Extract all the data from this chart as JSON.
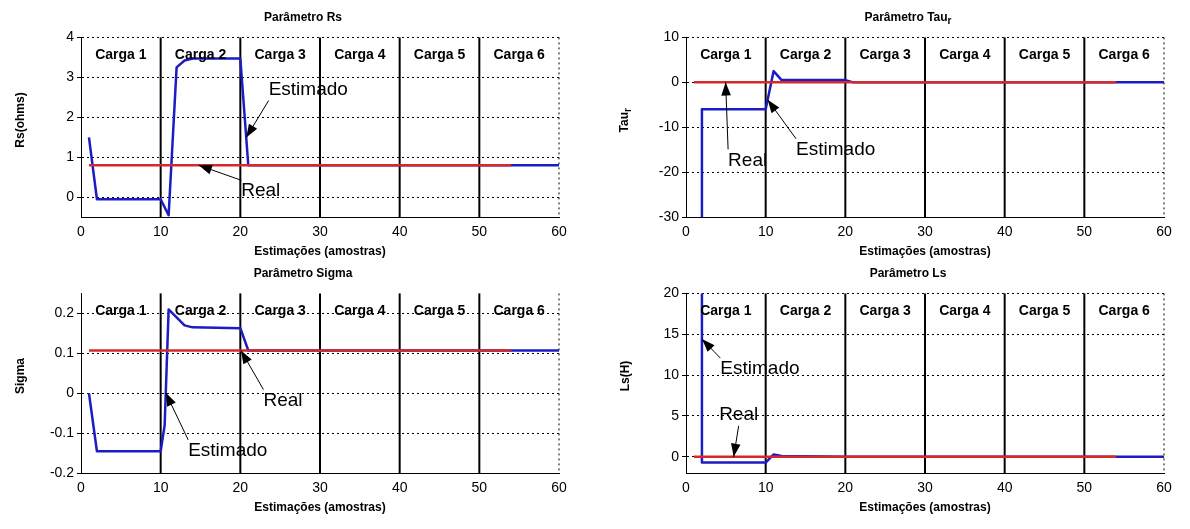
{
  "chart_data": [
    {
      "type": "line",
      "title": "Parâmetro Rs",
      "xlabel": "Estimações (amostras)",
      "ylabel": "Rs(ohms)",
      "xlim": [
        0,
        60
      ],
      "xticks": [
        0,
        10,
        20,
        30,
        40,
        50,
        60
      ],
      "ylim": [
        -0.5,
        4
      ],
      "yticks": [
        0,
        1,
        2,
        3,
        4
      ],
      "grid": "y",
      "series": [
        {
          "name": "Estimado",
          "color": "#1c1cc4",
          "x": [
            1,
            2,
            10,
            11,
            12,
            13,
            14,
            20,
            21,
            60
          ],
          "values": [
            1.5,
            -0.05,
            -0.05,
            -0.45,
            3.25,
            3.42,
            3.47,
            3.47,
            0.8,
            0.8
          ]
        },
        {
          "name": "Real",
          "color": "#d42a2a",
          "x": [
            1,
            54
          ],
          "values": [
            0.8,
            0.8
          ]
        }
      ],
      "ref_lines": [
        {
          "axis": "x",
          "value": 10,
          "color": "#000000"
        },
        {
          "axis": "x",
          "value": 20,
          "color": "#000000"
        },
        {
          "axis": "x",
          "value": 30,
          "color": "#000000"
        },
        {
          "axis": "x",
          "value": 40,
          "color": "#000000"
        },
        {
          "axis": "x",
          "value": 50,
          "color": "#000000"
        }
      ],
      "annotations": [
        "Carga 1",
        "Carga 2",
        "Carga 3",
        "Carga 4",
        "Carga 5",
        "Carga 6"
      ]
    },
    {
      "type": "line",
      "title": "Parâmetro Tau$_{r}$",
      "xlabel": "Estimações (amostras)",
      "ylabel": "Tau$_{r}$",
      "xlim": [
        0,
        60
      ],
      "xticks": [
        0,
        10,
        20,
        30,
        40,
        50,
        60
      ],
      "ylim": [
        -30,
        10
      ],
      "yticks": [
        -30,
        -20,
        -10,
        0,
        10
      ],
      "grid": "y",
      "series": [
        {
          "name": "Estimado",
          "color": "#1c1cc4",
          "x": [
            2,
            2,
            10,
            11,
            12,
            20,
            21,
            60
          ],
          "values": [
            -30,
            -6,
            -6,
            2.5,
            0.5,
            0.5,
            0,
            0
          ]
        },
        {
          "name": "Real",
          "color": "#d42a2a",
          "x": [
            1,
            54
          ],
          "values": [
            0,
            0
          ]
        }
      ],
      "ref_lines": [
        {
          "axis": "x",
          "value": 10,
          "color": "#000000"
        },
        {
          "axis": "x",
          "value": 20,
          "color": "#000000"
        },
        {
          "axis": "x",
          "value": 30,
          "color": "#000000"
        },
        {
          "axis": "x",
          "value": 40,
          "color": "#000000"
        },
        {
          "axis": "x",
          "value": 50,
          "color": "#000000"
        }
      ],
      "annotations": [
        "Carga 1",
        "Carga 2",
        "Carga 3",
        "Carga 4",
        "Carga 5",
        "Carga 6"
      ]
    },
    {
      "type": "line",
      "title": "Parâmetro Sigma",
      "xlabel": "Estimações (amostras)",
      "ylabel": "Sigma",
      "xlim": [
        0,
        60
      ],
      "xticks": [
        0,
        10,
        20,
        30,
        40,
        50,
        60
      ],
      "ylim": [
        -0.2,
        0.25
      ],
      "yticks": [
        -0.2,
        -0.1,
        0,
        0.1,
        0.2
      ],
      "grid": "y",
      "series": [
        {
          "name": "Estimado",
          "color": "#1c1cc4",
          "x": [
            1,
            2,
            10,
            10.5,
            11,
            12,
            13,
            14,
            20,
            21,
            60
          ],
          "values": [
            0,
            -0.145,
            -0.145,
            -0.08,
            0.21,
            0.19,
            0.17,
            0.165,
            0.163,
            0.107,
            0.107
          ]
        },
        {
          "name": "Real",
          "color": "#d42a2a",
          "x": [
            1,
            54
          ],
          "values": [
            0.107,
            0.107
          ]
        }
      ],
      "ref_lines": [
        {
          "axis": "x",
          "value": 10,
          "color": "#000000"
        },
        {
          "axis": "x",
          "value": 20,
          "color": "#000000"
        },
        {
          "axis": "x",
          "value": 30,
          "color": "#000000"
        },
        {
          "axis": "x",
          "value": 40,
          "color": "#000000"
        },
        {
          "axis": "x",
          "value": 50,
          "color": "#000000"
        }
      ],
      "annotations": [
        "Carga 1",
        "Carga 2",
        "Carga 3",
        "Carga 4",
        "Carga 5",
        "Carga 6"
      ]
    },
    {
      "type": "line",
      "title": "Parâmetro Ls",
      "xlabel": "Estimações (amostras)",
      "ylabel": "Ls(H)",
      "xlim": [
        0,
        60
      ],
      "xticks": [
        0,
        10,
        20,
        30,
        40,
        50,
        60
      ],
      "ylim": [
        -2,
        20
      ],
      "yticks": [
        0,
        5,
        10,
        15,
        20
      ],
      "grid": "y",
      "series": [
        {
          "name": "Estimado",
          "color": "#1c1cc4",
          "x": [
            2,
            2,
            10,
            11,
            12,
            20,
            60
          ],
          "values": [
            20,
            -0.7,
            -0.7,
            0.3,
            0.1,
            0,
            0
          ]
        },
        {
          "name": "Real",
          "color": "#d42a2a",
          "x": [
            1,
            54
          ],
          "values": [
            0,
            0
          ]
        }
      ],
      "ref_lines": [
        {
          "axis": "x",
          "value": 10,
          "color": "#000000"
        },
        {
          "axis": "x",
          "value": 20,
          "color": "#000000"
        },
        {
          "axis": "x",
          "value": 30,
          "color": "#000000"
        },
        {
          "axis": "x",
          "value": 40,
          "color": "#000000"
        },
        {
          "axis": "x",
          "value": 50,
          "color": "#000000"
        }
      ],
      "annotations": [
        "Carga 1",
        "Carga 2",
        "Carga 3",
        "Carga 4",
        "Carga 5",
        "Carga 6"
      ]
    }
  ]
}
